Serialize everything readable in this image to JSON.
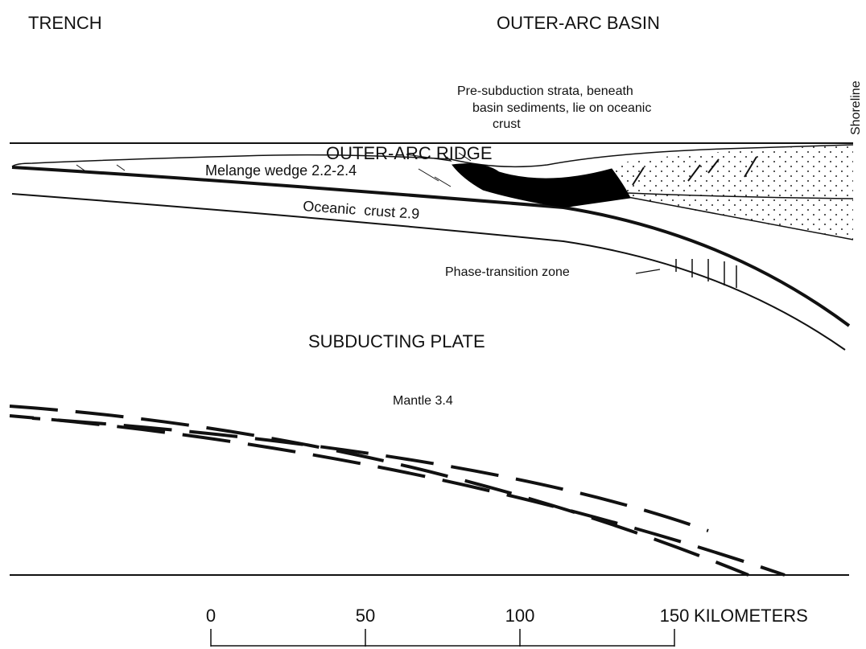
{
  "labels": {
    "trench": "TRENCH",
    "outer_arc_basin": "OUTER-ARC BASIN",
    "shoreline": "Shoreline",
    "pre_subduction": [
      "Pre-subduction strata, beneath",
      "basin sediments, lie on oceanic",
      "crust"
    ],
    "outer_arc_ridge": "OUTER-ARC RIDGE",
    "melange": "Melange wedge 2.2-2.4",
    "oceanic_crust": "Oceanic  crust 2.9",
    "phase_transition": "Phase-transition zone",
    "subducting_plate": "SUBDUCTING PLATE",
    "mantle": "Mantle 3.4"
  },
  "scale": {
    "ticks": [
      0,
      50,
      100,
      150
    ],
    "unit": "KILOMETERS"
  }
}
